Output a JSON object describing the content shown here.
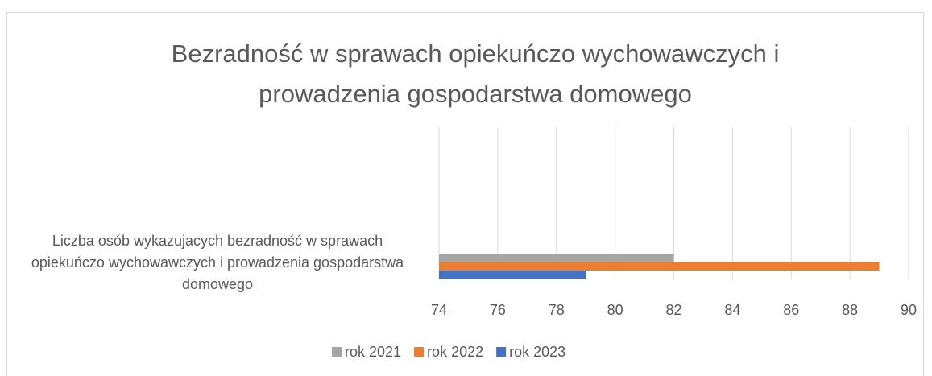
{
  "chart_data": {
    "type": "bar",
    "orientation": "horizontal",
    "title": "Bezradność w sprawach opiekuńczo wychowawczych i prowadzenia gospodarstwa domowego",
    "categories": [
      "Liczba osób wykazujacych bezradność w sprawach opiekuńczo wychowawczych i prowadzenia gospodarstwa domowego"
    ],
    "series": [
      {
        "name": "rok 2021",
        "color": "#a5a5a5",
        "values": [
          82
        ]
      },
      {
        "name": "rok 2022",
        "color": "#ed7d31",
        "values": [
          89
        ]
      },
      {
        "name": "rok 2023",
        "color": "#4472c4",
        "values": [
          79
        ]
      }
    ],
    "xlim": [
      74,
      90
    ],
    "xticks": [
      74,
      76,
      78,
      80,
      82,
      84,
      86,
      88,
      90
    ],
    "grid": true,
    "legend": "bottom"
  }
}
